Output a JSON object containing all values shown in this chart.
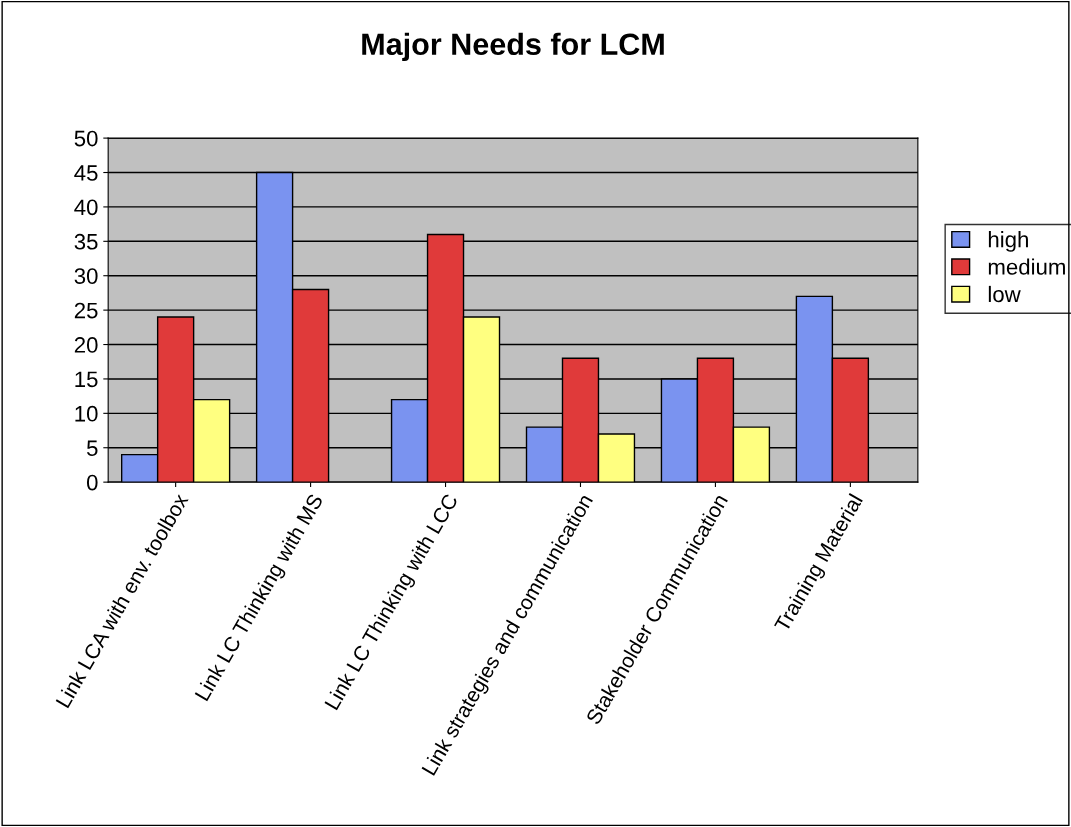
{
  "chart_data": {
    "type": "bar",
    "title": "Major Needs for LCM",
    "categories": [
      "Link LCA with env. toolbox",
      "Link LC Thinking with MS",
      "Link LC Thinking with LCC",
      "Link strategies and communication",
      "Stakeholder Communication",
      "Training Material"
    ],
    "series": [
      {
        "name": "high",
        "color": "#7a93f0",
        "values": [
          4,
          45,
          12,
          8,
          15,
          27
        ]
      },
      {
        "name": "medium",
        "color": "#e03a3a",
        "values": [
          24,
          28,
          36,
          18,
          18,
          18
        ]
      },
      {
        "name": "low",
        "color": "#ffff80",
        "values": [
          12,
          null,
          24,
          7,
          8,
          null
        ]
      }
    ],
    "ylim": [
      0,
      50
    ],
    "yticks": [
      0,
      5,
      10,
      15,
      20,
      25,
      30,
      35,
      40,
      45,
      50
    ],
    "grid": "y",
    "legend": "right"
  }
}
